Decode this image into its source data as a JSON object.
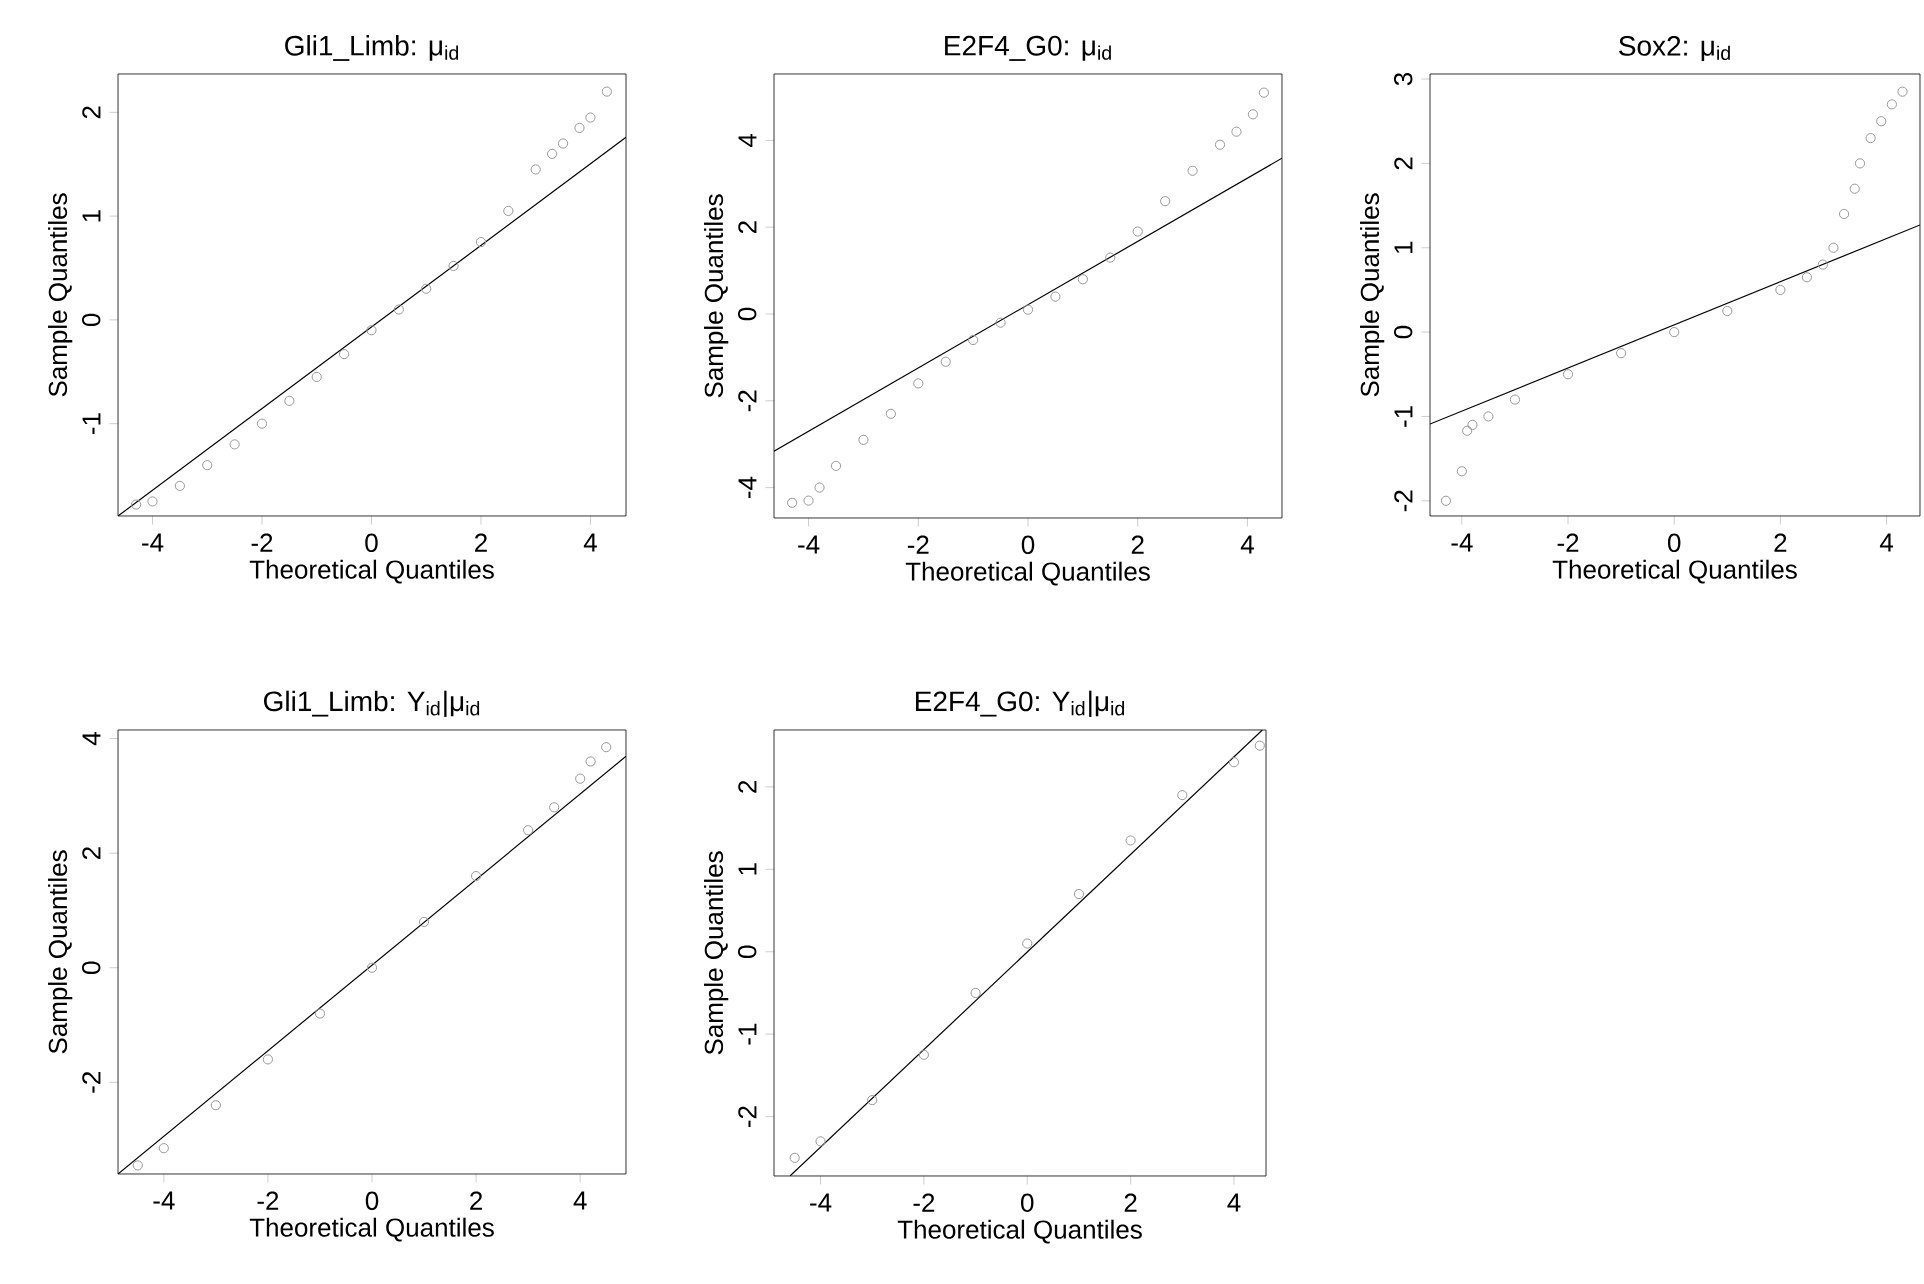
{
  "chart_data": [
    {
      "type": "scatter",
      "title": "Gli1_Limb: μ$_{id}$",
      "xlabel": "Theoretical Quantiles",
      "ylabel": "Sample Quantiles",
      "marker": "circle",
      "xlim": [
        -4.63,
        4.65
      ],
      "ylim": [
        -1.89,
        2.37
      ],
      "xticks": [
        -4,
        -2,
        0,
        2,
        4
      ],
      "yticks": [
        -1,
        0,
        1,
        2
      ],
      "series": [
        {
          "color": "#999999",
          "x": [
            -4.3,
            -4.0,
            -3.5,
            -3.0,
            -2.5,
            -2.0,
            -1.5,
            -1.0,
            -0.5,
            0,
            0.5,
            1.0,
            1.5,
            2.0,
            2.5,
            3.0,
            3.3,
            3.5,
            3.8,
            4.0,
            4.3
          ],
          "values": [
            -1.78,
            -1.75,
            -1.6,
            -1.4,
            -1.2,
            -1.0,
            -0.78,
            -0.55,
            -0.33,
            -0.1,
            0.1,
            0.3,
            0.52,
            0.75,
            1.05,
            1.45,
            1.6,
            1.7,
            1.85,
            1.95,
            2.2
          ]
        },
        {
          "type": "line",
          "marker": "none",
          "color": "#000000",
          "x": [
            -4.63,
            4.65
          ],
          "values": [
            -1.89,
            1.76
          ]
        }
      ]
    },
    {
      "type": "scatter",
      "title": "E2F4_G0: μ$_{id}$",
      "xlabel": "Theoretical Quantiles",
      "ylabel": "Sample Quantiles",
      "marker": "circle",
      "xlim": [
        -4.63,
        4.63
      ],
      "ylim": [
        -4.7,
        5.53
      ],
      "xticks": [
        -4,
        -2,
        0,
        2,
        4
      ],
      "yticks": [
        -4,
        -2,
        0,
        2,
        4
      ],
      "series": [
        {
          "color": "#999999",
          "x": [
            -4.3,
            -4.0,
            -3.8,
            -3.5,
            -3.0,
            -2.5,
            -2.0,
            -1.5,
            -1.0,
            -0.5,
            0,
            0.5,
            1.0,
            1.5,
            2.0,
            2.5,
            3.0,
            3.5,
            3.8,
            4.1,
            4.3
          ],
          "values": [
            -4.35,
            -4.3,
            -4.0,
            -3.5,
            -2.9,
            -2.3,
            -1.6,
            -1.1,
            -0.6,
            -0.2,
            0.1,
            0.4,
            0.8,
            1.3,
            1.9,
            2.6,
            3.3,
            3.9,
            4.2,
            4.6,
            5.1
          ]
        },
        {
          "type": "line",
          "marker": "none",
          "color": "#000000",
          "x": [
            -4.63,
            4.63
          ],
          "values": [
            -3.16,
            3.59
          ]
        }
      ]
    },
    {
      "type": "scatter",
      "title": "Sox2: μ$_{id}$",
      "xlabel": "Theoretical Quantiles",
      "ylabel": "Sample Quantiles",
      "marker": "circle",
      "xlim": [
        -4.6,
        4.63
      ],
      "ylim": [
        -2.18,
        3.06
      ],
      "xticks": [
        -4,
        -2,
        0,
        2,
        4
      ],
      "yticks": [
        -2,
        -1,
        0,
        1,
        2,
        3
      ],
      "series": [
        {
          "color": "#999999",
          "x": [
            -4.3,
            -4.0,
            -3.9,
            -3.8,
            -3.5,
            -3.0,
            -2.0,
            -1.0,
            0,
            1.0,
            2.0,
            2.5,
            2.8,
            3.0,
            3.2,
            3.4,
            3.5,
            3.7,
            3.9,
            4.1,
            4.3
          ],
          "values": [
            -2.0,
            -1.65,
            -1.17,
            -1.1,
            -1.0,
            -0.8,
            -0.5,
            -0.25,
            0,
            0.25,
            0.5,
            0.65,
            0.8,
            1.0,
            1.4,
            1.7,
            2.0,
            2.3,
            2.5,
            2.7,
            2.85
          ]
        },
        {
          "type": "line",
          "marker": "none",
          "color": "#000000",
          "x": [
            -4.6,
            4.63
          ],
          "values": [
            -1.09,
            1.27
          ]
        }
      ]
    },
    {
      "type": "scatter",
      "title": "Gli1_Limb: Y$_{id}$|μ$_{id}$",
      "xlabel": "Theoretical Quantiles",
      "ylabel": "Sample Quantiles",
      "marker": "circle",
      "xlim": [
        -4.88,
        4.88
      ],
      "ylim": [
        -3.6,
        4.15
      ],
      "xticks": [
        -4,
        -2,
        0,
        2,
        4
      ],
      "yticks": [
        -2,
        0,
        2,
        4
      ],
      "series": [
        {
          "color": "#999999",
          "x": [
            -4.5,
            -4.0,
            -3.0,
            -2.0,
            -1.0,
            0,
            1.0,
            2.0,
            3.0,
            3.5,
            4.0,
            4.2,
            4.5
          ],
          "values": [
            -3.45,
            -3.15,
            -2.4,
            -1.6,
            -0.8,
            0,
            0.8,
            1.6,
            2.4,
            2.8,
            3.3,
            3.6,
            3.85
          ]
        },
        {
          "type": "line",
          "marker": "none",
          "color": "#000000",
          "x": [
            -4.88,
            4.88
          ],
          "values": [
            -3.6,
            3.69
          ]
        }
      ]
    },
    {
      "type": "scatter",
      "title": "E2F4_G0: Y$_{id}$|μ$_{id}$",
      "xlabel": "Theoretical Quantiles",
      "ylabel": "Sample Quantiles",
      "marker": "circle",
      "xlim": [
        -4.9,
        4.62
      ],
      "ylim": [
        -2.72,
        2.69
      ],
      "xticks": [
        -4,
        -2,
        0,
        2,
        4
      ],
      "yticks": [
        -2,
        -1,
        0,
        1,
        2
      ],
      "series": [
        {
          "color": "#999999",
          "x": [
            -4.5,
            -4.0,
            -3.0,
            -2.0,
            -1.0,
            0,
            1.0,
            2.0,
            3.0,
            4.0,
            4.5
          ],
          "values": [
            -2.5,
            -2.3,
            -1.8,
            -1.25,
            -0.5,
            0.1,
            0.7,
            1.35,
            1.9,
            2.3,
            2.5
          ]
        },
        {
          "type": "line",
          "marker": "none",
          "color": "#000000",
          "x": [
            -4.59,
            4.55
          ],
          "values": [
            -2.72,
            2.69
          ]
        }
      ]
    }
  ]
}
